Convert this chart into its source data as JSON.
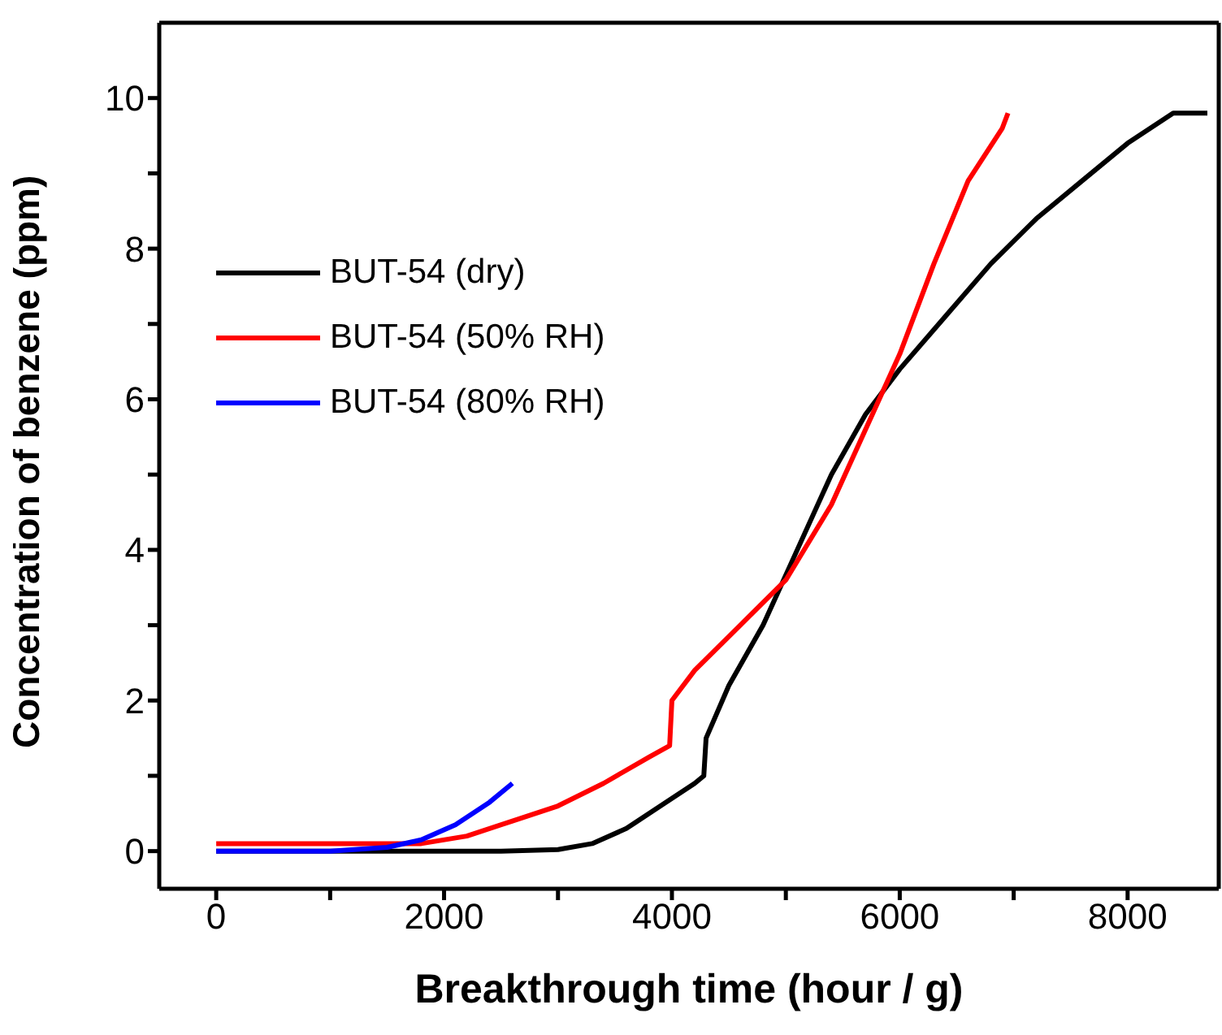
{
  "chart_data": {
    "type": "line",
    "xlabel": "Breakthrough time (hour / g)",
    "ylabel": "Concentration of benzene (ppm)",
    "xlim": [
      -500,
      8800
    ],
    "xticks": [
      0,
      {
        "value": 1000,
        "label": null
      },
      2000,
      {
        "value": 3000,
        "label": null
      },
      4000,
      {
        "value": 5000,
        "label": null
      },
      6000,
      {
        "value": 7000,
        "label": null
      },
      8000
    ],
    "ylim": [
      -0.5,
      11
    ],
    "yticks": [
      0,
      {
        "value": 1,
        "label": null
      },
      2,
      {
        "value": 3,
        "label": null
      },
      4,
      {
        "value": 5,
        "label": null
      },
      6,
      {
        "value": 7,
        "label": null
      },
      8,
      {
        "value": 9,
        "label": null
      },
      10
    ],
    "legend": "top left",
    "grid": false,
    "marker": "none",
    "line_style": "solid",
    "series": [
      {
        "name": "BUT-54 (dry)",
        "color": "#000000",
        "x": [
          0,
          1000,
          2000,
          2500,
          3000,
          3300,
          3600,
          3900,
          4200,
          4280,
          4300,
          4500,
          4800,
          5100,
          5400,
          5700,
          6000,
          6400,
          6800,
          7200,
          7600,
          8000,
          8400,
          8700
        ],
        "values": [
          0,
          0,
          0,
          0,
          0.02,
          0.1,
          0.3,
          0.6,
          0.9,
          1.0,
          1.5,
          2.2,
          3.0,
          4.0,
          5.0,
          5.8,
          6.4,
          7.1,
          7.8,
          8.4,
          8.9,
          9.4,
          9.8,
          9.8
        ]
      },
      {
        "name": "BUT-54 (50% RH)",
        "color": "#ff0000",
        "x": [
          0,
          1000,
          1800,
          2200,
          2600,
          3000,
          3400,
          3800,
          3980,
          4000,
          4200,
          4600,
          5000,
          5400,
          5700,
          6000,
          6300,
          6600,
          6900,
          6950
        ],
        "values": [
          0.1,
          0.1,
          0.1,
          0.2,
          0.4,
          0.6,
          0.9,
          1.25,
          1.4,
          2.0,
          2.4,
          3.0,
          3.6,
          4.6,
          5.6,
          6.6,
          7.8,
          8.9,
          9.6,
          9.8
        ]
      },
      {
        "name": "BUT-54 (80% RH)",
        "color": "#0000ff",
        "x": [
          0,
          1000,
          1500,
          1800,
          2100,
          2400,
          2600
        ],
        "values": [
          0,
          0,
          0.05,
          0.15,
          0.35,
          0.65,
          0.9
        ]
      }
    ]
  }
}
